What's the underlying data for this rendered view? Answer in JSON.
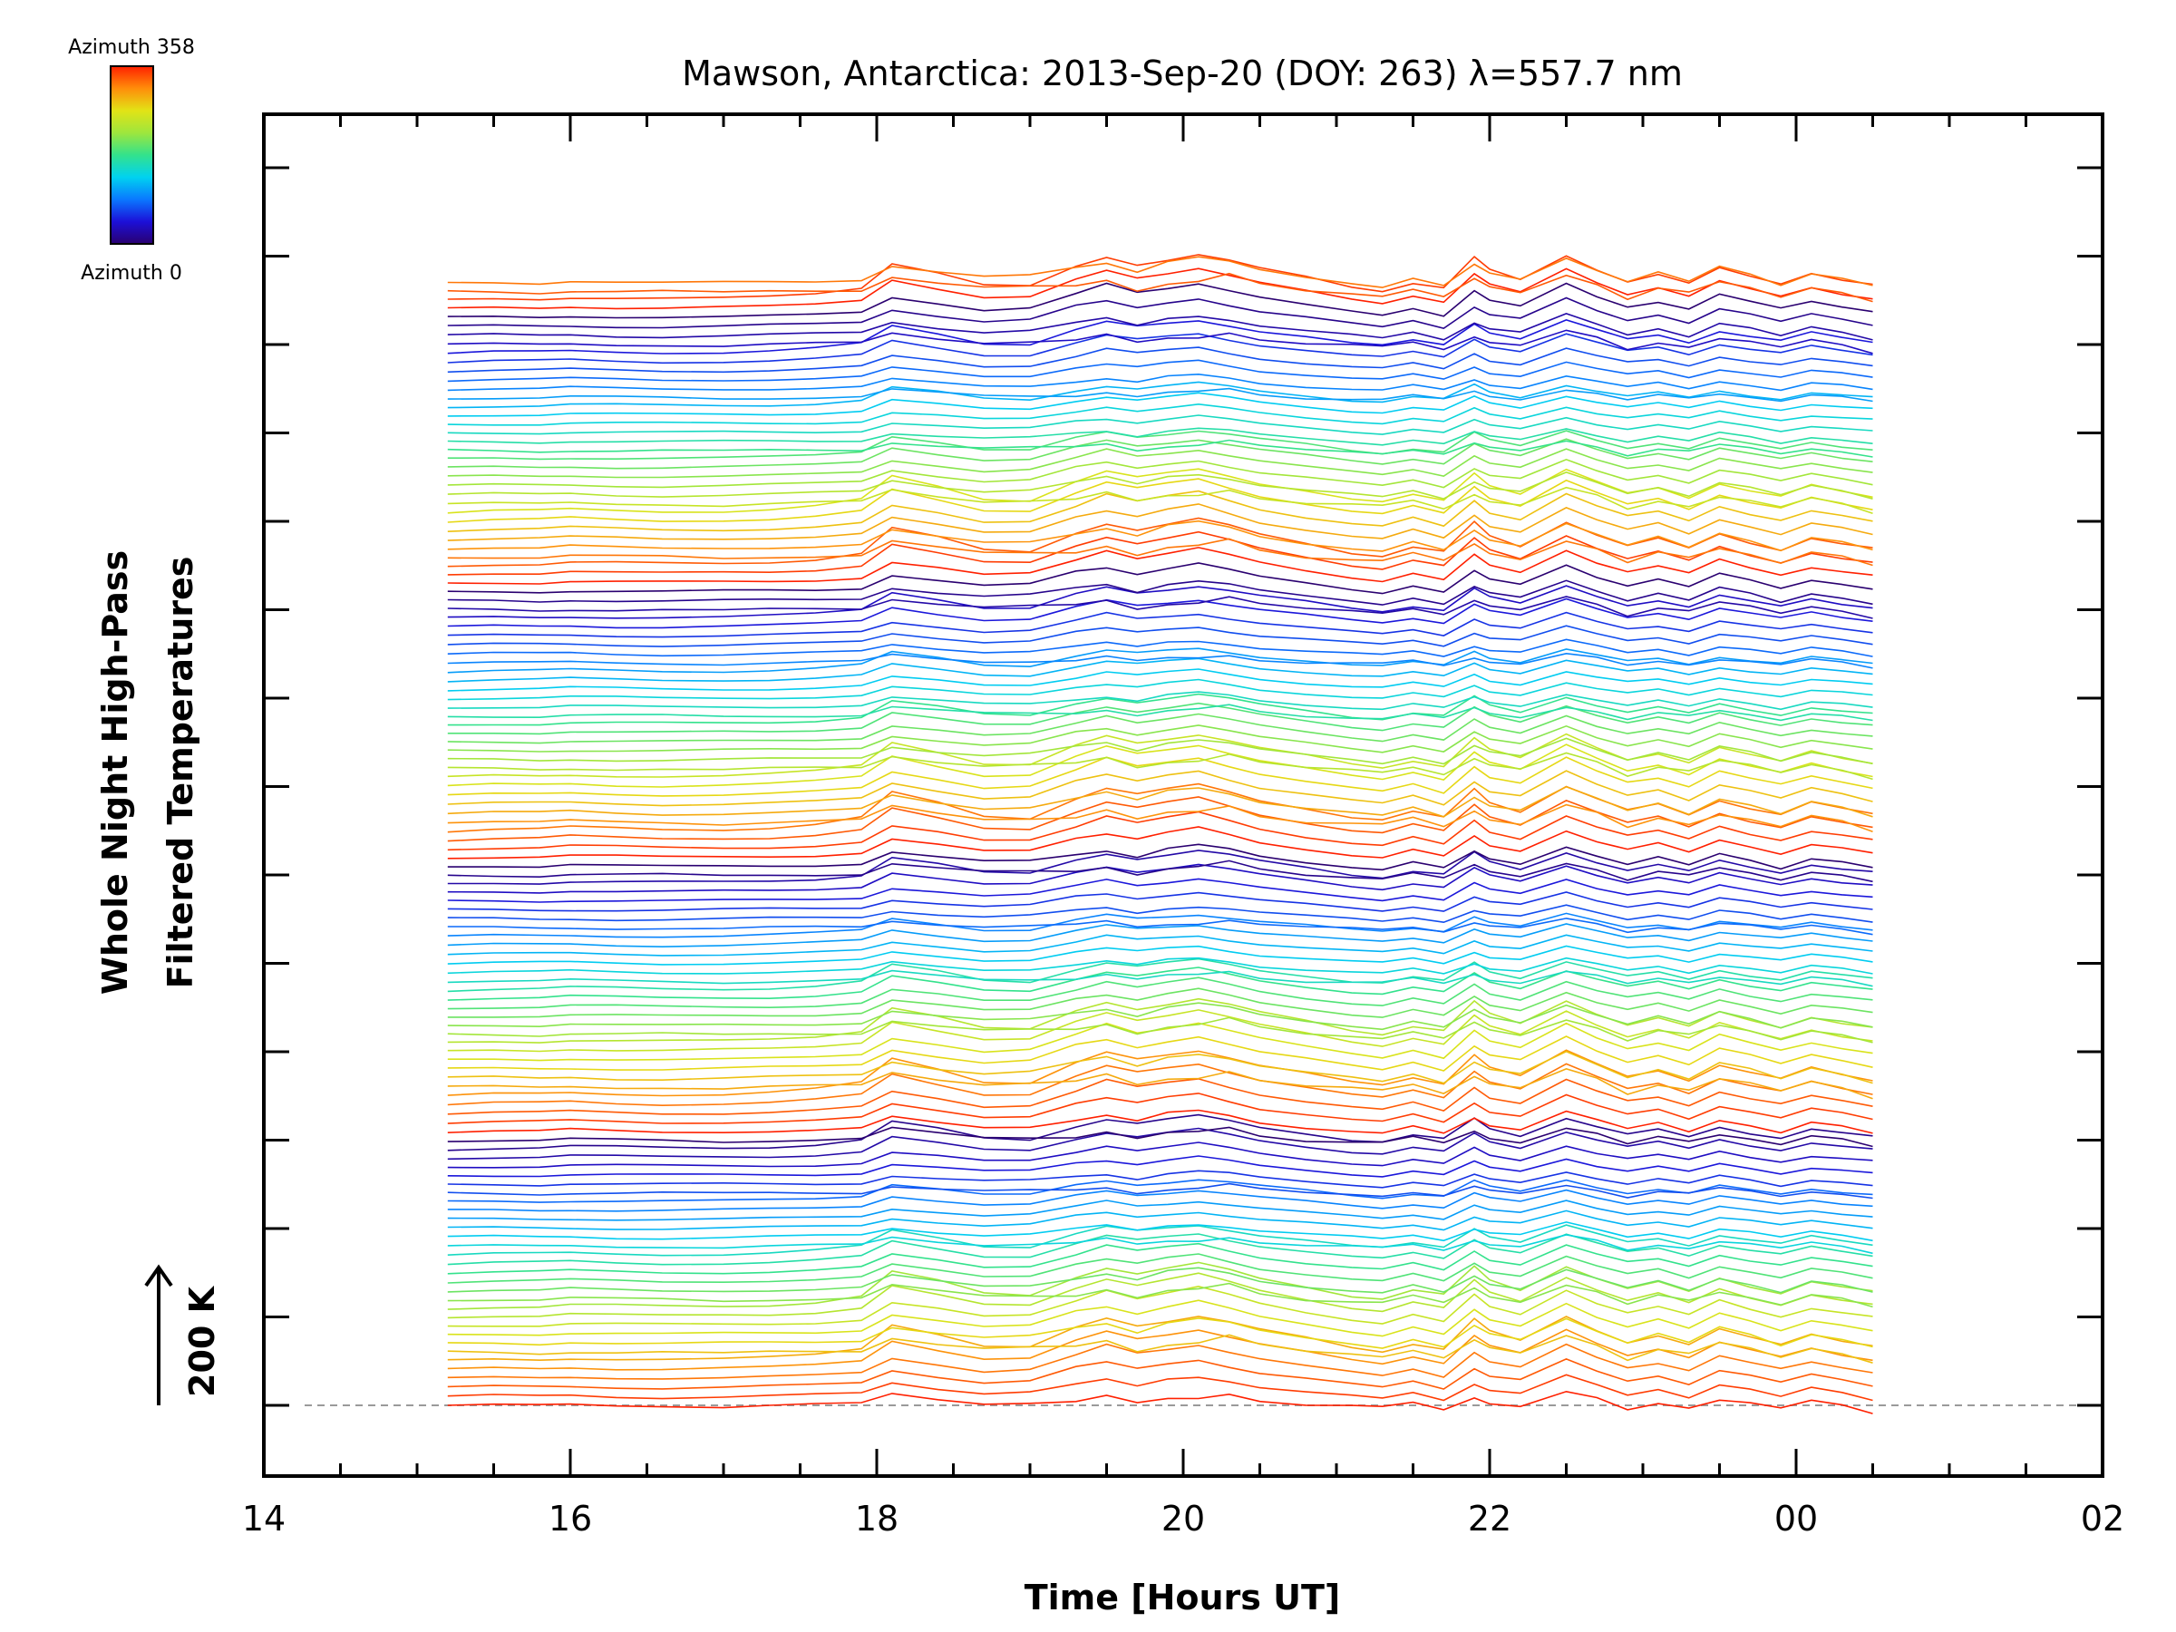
{
  "chart_data": {
    "type": "line",
    "title": "Mawson, Antarctica: 2013-Sep-20 (DOY: 263) λ=557.7 nm",
    "xlabel": "Time [Hours UT]",
    "ylabel_line1": "Whole Night High-Pass",
    "ylabel_line2": "Filtered Temperatures",
    "scale_label": "200 K",
    "xlim": [
      14,
      26
    ],
    "x_tick_labels": [
      "14",
      "16",
      "18",
      "20",
      "22",
      "00",
      "02"
    ],
    "colorbar": {
      "top_label": "Azimuth  358",
      "bottom_label": "Azimuth  0",
      "colormap": "rainbow",
      "colors": [
        "#2a0070",
        "#1c10d8",
        "#0a78ff",
        "#00d2f0",
        "#33e28c",
        "#9ee63d",
        "#e2e316",
        "#ff8d0a",
        "#ff2000"
      ]
    },
    "trace_count": 128,
    "trace_offset_k": 12,
    "time_hours": [
      15.2,
      15.5,
      15.8,
      16.0,
      16.3,
      16.6,
      17.0,
      17.3,
      17.6,
      17.9,
      18.1,
      18.4,
      18.7,
      19.0,
      19.3,
      19.5,
      19.7,
      19.9,
      20.1,
      20.3,
      20.5,
      20.8,
      21.1,
      21.3,
      21.5,
      21.7,
      21.9,
      22.0,
      22.2,
      22.5,
      22.7,
      22.9,
      23.1,
      23.3,
      23.5,
      23.7,
      23.9,
      24.1,
      24.3,
      24.5
    ],
    "series": [
      {
        "values": [
          0,
          0,
          -1,
          1,
          0,
          0,
          -2,
          0,
          1,
          2,
          18,
          10,
          4,
          5,
          6,
          14,
          2,
          10,
          12,
          20,
          8,
          0,
          -2,
          -4,
          4,
          -6,
          14,
          4,
          -2,
          20,
          10,
          -8,
          4,
          -2,
          10,
          4,
          -6,
          6,
          0,
          -12
        ]
      },
      {
        "values": [
          0,
          1,
          0,
          2,
          0,
          -1,
          0,
          1,
          2,
          4,
          20,
          12,
          6,
          8,
          18,
          24,
          14,
          26,
          30,
          24,
          14,
          6,
          0,
          -4,
          6,
          -4,
          20,
          10,
          4,
          30,
          16,
          2,
          12,
          0,
          18,
          10,
          -2,
          12,
          6,
          -4
        ]
      },
      {
        "values": [
          0,
          1,
          1,
          2,
          1,
          0,
          1,
          2,
          3,
          6,
          24,
          16,
          8,
          10,
          28,
          34,
          26,
          34,
          40,
          30,
          20,
          12,
          4,
          0,
          10,
          0,
          28,
          16,
          10,
          38,
          22,
          10,
          18,
          6,
          24,
          16,
          6,
          18,
          12,
          4
        ]
      },
      {
        "values": [
          0,
          1,
          1,
          3,
          2,
          1,
          1,
          2,
          4,
          8,
          28,
          20,
          10,
          12,
          30,
          44,
          34,
          40,
          46,
          36,
          26,
          16,
          8,
          4,
          14,
          4,
          36,
          22,
          14,
          44,
          28,
          16,
          22,
          12,
          30,
          20,
          12,
          22,
          16,
          10
        ]
      },
      {
        "values": [
          0,
          2,
          2,
          4,
          2,
          1,
          2,
          3,
          6,
          12,
          38,
          26,
          14,
          14,
          36,
          48,
          40,
          46,
          52,
          42,
          32,
          22,
          12,
          8,
          18,
          10,
          44,
          30,
          20,
          50,
          34,
          20,
          28,
          16,
          34,
          24,
          16,
          28,
          20,
          14
        ]
      },
      {
        "values": [
          0,
          2,
          2,
          4,
          3,
          2,
          2,
          4,
          8,
          16,
          46,
          34,
          18,
          16,
          40,
          52,
          44,
          50,
          56,
          48,
          38,
          28,
          16,
          12,
          22,
          16,
          52,
          36,
          24,
          54,
          38,
          24,
          32,
          20,
          38,
          28,
          20,
          34,
          26,
          20
        ]
      }
    ]
  }
}
